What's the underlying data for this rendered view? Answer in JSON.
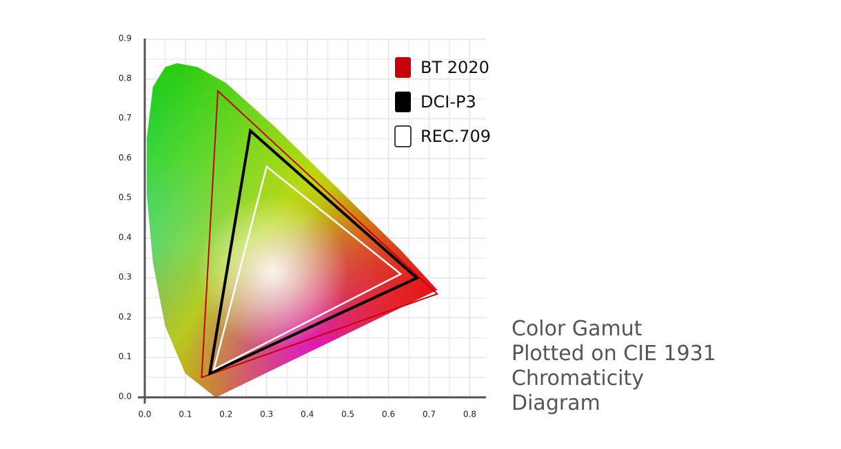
{
  "chart_data": {
    "type": "gamut",
    "title_lines": [
      "Color Gamut",
      "Plotted on CIE 1931",
      "Chromaticity",
      "Diagram"
    ],
    "xlim": [
      0,
      0.84
    ],
    "ylim": [
      0,
      0.9
    ],
    "xticks": [
      {
        "value": 0,
        "label": "0.0"
      },
      0.1,
      0.2,
      0.3,
      0.4,
      0.5,
      0.6,
      0.7,
      0.8
    ],
    "yticks": [
      {
        "value": 0,
        "label": "0.0"
      },
      0.1,
      0.2,
      0.3,
      0.4,
      0.5,
      0.6,
      0.7,
      0.8,
      0.9
    ],
    "grid": true,
    "xminor": [
      0.05,
      0.15,
      0.25,
      0.35,
      0.45,
      0.55,
      0.65,
      0.75
    ],
    "yminor": [
      0.05,
      0.15,
      0.25,
      0.35,
      0.45,
      0.55,
      0.65,
      0.75,
      0.85
    ],
    "legend": "top-right",
    "locus": {
      "x": [
        0.175,
        0.1,
        0.05,
        0.02,
        0.005,
        0.005,
        0.02,
        0.05,
        0.08,
        0.13,
        0.2,
        0.32,
        0.49,
        0.63,
        0.72
      ],
      "y": [
        0.0,
        0.06,
        0.18,
        0.34,
        0.51,
        0.65,
        0.78,
        0.83,
        0.84,
        0.83,
        0.79,
        0.68,
        0.51,
        0.37,
        0.27
      ]
    },
    "series": [
      {
        "name": "BT 2020",
        "color": "#c8000a",
        "x": [
          0.72,
          0.18,
          0.14
        ],
        "y": [
          0.26,
          0.77,
          0.05
        ]
      },
      {
        "name": "DCI-P3",
        "color": "#000000",
        "x": [
          0.67,
          0.26,
          0.16
        ],
        "y": [
          0.3,
          0.67,
          0.06
        ]
      },
      {
        "name": "REC.709",
        "color": "#ffffff",
        "x": [
          0.63,
          0.3,
          0.17
        ],
        "y": [
          0.31,
          0.58,
          0.07
        ]
      }
    ]
  }
}
